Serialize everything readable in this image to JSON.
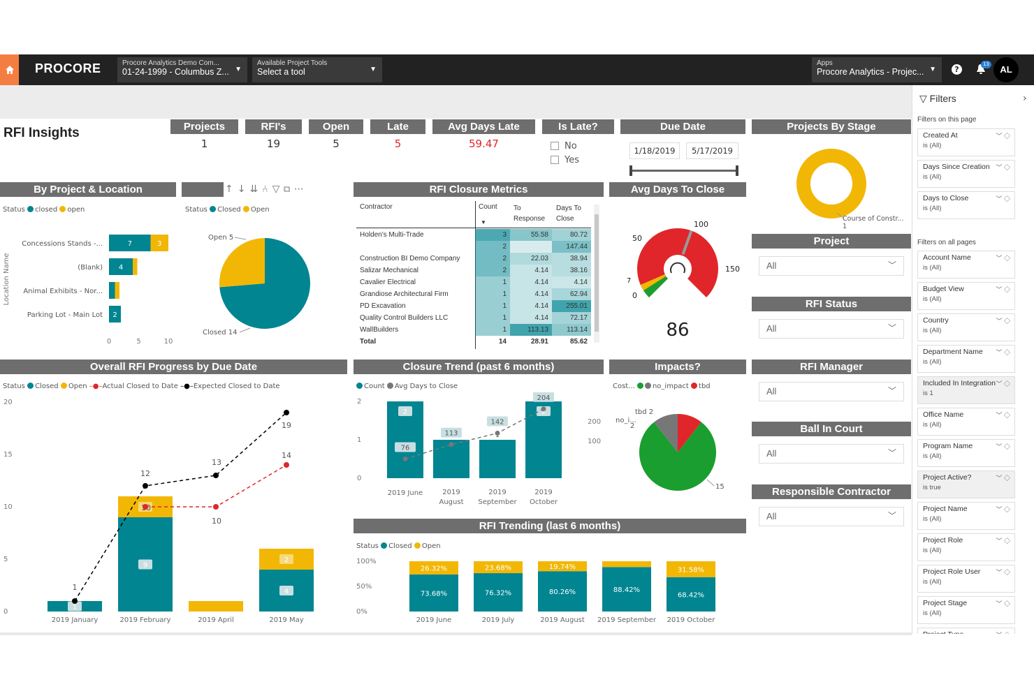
{
  "topbar": {
    "logo": "PROCORE",
    "company_line1": "Procore Analytics Demo Com...",
    "company_line2": "01-24-1999 - Columbus Z...",
    "tools_line1": "Available Project Tools",
    "tools_line2": "Select a tool",
    "apps_line1": "Apps",
    "apps_line2": "Procore Analytics - Projec...",
    "notif_count": "13",
    "avatar": "AL"
  },
  "page_title": "RFI Insights",
  "kpis": {
    "projects_label": "Projects",
    "projects_value": "1",
    "rfis_label": "RFI's",
    "rfis_value": "19",
    "open_label": "Open",
    "open_value": "5",
    "late_label": "Late",
    "late_value": "5",
    "avgdays_label": "Avg Days Late",
    "avgdays_value": "59.47"
  },
  "is_late": {
    "label": "Is Late?",
    "opt_no": "No",
    "opt_yes": "Yes"
  },
  "due_date": {
    "label": "Due Date",
    "start": "1/18/2019",
    "end": "5/17/2019"
  },
  "projects_by_stage": {
    "label": "Projects By Stage",
    "slice_label": "Course of Constr...",
    "slice_value": "1"
  },
  "slicers": {
    "project": "Project",
    "rfi_status": "RFI Status",
    "rfi_manager": "RFI Manager",
    "ball_in_court": "Ball In Court",
    "responsible_contractor": "Responsible Contractor",
    "all": "All"
  },
  "by_project": {
    "title": "By Project & Location",
    "legend_status": "Status",
    "legend_closed": "closed",
    "legend_open": "open",
    "axis_label": "Location Name",
    "categories": [
      "Concessions Stands -...",
      "(Blank)",
      "Animal Exhibits - Nor...",
      "Parking Lot - Main Lot"
    ],
    "closed": [
      7,
      4,
      1,
      2
    ],
    "open": [
      3,
      1,
      1,
      0
    ],
    "ticks": [
      "0",
      "5",
      "10"
    ]
  },
  "status_pie": {
    "legend_status": "Status",
    "legend_closed": "Closed",
    "legend_open": "Open",
    "open_label": "Open 5",
    "closed_label": "Closed 14",
    "open": 5,
    "closed": 14
  },
  "closure_metrics": {
    "title": "RFI Closure Metrics",
    "h_contractor": "Contractor",
    "h_count": "Count",
    "h_to1": "To",
    "h_to2": "Response",
    "h_days1": "Days To",
    "h_days2": "Close",
    "rows": [
      [
        "Holden's Multi-Trade",
        "3",
        "55.58",
        "80.72"
      ],
      [
        "",
        "2",
        "",
        "147.44"
      ],
      [
        "Construction BI Demo Company",
        "2",
        "22.03",
        "38.94"
      ],
      [
        "Salizar Mechanical",
        "2",
        "4.14",
        "38.16"
      ],
      [
        "Cavalier Electrical",
        "1",
        "4.14",
        "4.14"
      ],
      [
        "Grandiose Architectural Firm",
        "1",
        "4.14",
        "62.94"
      ],
      [
        "PD Excavation",
        "1",
        "4.14",
        "255.01"
      ],
      [
        "Quality Control Builders LLC",
        "1",
        "4.14",
        "72.17"
      ],
      [
        "WallBuilders",
        "1",
        "113.13",
        "113.14"
      ]
    ],
    "total": [
      "Total",
      "14",
      "28.91",
      "85.62"
    ]
  },
  "avg_days_close": {
    "title": "Avg Days To Close",
    "value": "86",
    "t0": "0",
    "t7": "7",
    "t50": "50",
    "t100": "100",
    "t150": "150"
  },
  "overall_progress": {
    "title": "Overall RFI Progress by Due Date",
    "legend_status": "Status",
    "legend_closed": "Closed",
    "legend_open": "Open",
    "legend_actual": "Actual Closed to Date",
    "legend_expected": "Expected Closed to Date",
    "yticks": [
      "0",
      "5",
      "10",
      "15",
      "20"
    ],
    "categories": [
      "2019 January",
      "2019 February",
      "2019 April",
      "2019 May"
    ],
    "closed": [
      1,
      9,
      0,
      4
    ],
    "open": [
      0,
      2,
      1,
      2
    ],
    "expected_labels": [
      "1",
      "10",
      "12",
      "13",
      "14",
      "19"
    ],
    "actual_labels": [
      "10"
    ]
  },
  "closure_trend": {
    "title": "Closure Trend (past 6 months)",
    "legend_count": "Count",
    "legend_avg": "Avg Days to Close",
    "categories": [
      "2019 June",
      "2019 August",
      "2019 September",
      "2019 October"
    ],
    "counts": [
      "2",
      "1",
      "1",
      "2"
    ],
    "avg": [
      "76",
      "113",
      "142",
      "204"
    ],
    "yleft": [
      "0",
      "1",
      "2"
    ],
    "yright": [
      "100",
      "200"
    ]
  },
  "impacts": {
    "title": "Impacts?",
    "legend_cost": "Cost...",
    "legend_no": "no_impact",
    "legend_tbd": "tbd",
    "tbd_label": "tbd 2",
    "no_i_label": "no_i...",
    "no_i_value": "2",
    "main_value": "15"
  },
  "trending": {
    "title": "RFI Trending (last 6 months)",
    "legend_status": "Status",
    "legend_closed": "Closed",
    "legend_open": "Open",
    "yticks": [
      "0%",
      "50%",
      "100%"
    ],
    "categories": [
      "2019 June",
      "2019 July",
      "2019 August",
      "2019 September",
      "2019 October"
    ],
    "closed": [
      "73.68%",
      "76.32%",
      "80.26%",
      "88.42%",
      "68.42%"
    ],
    "open": [
      "26.32%",
      "23.68%",
      "19.74%",
      "",
      "31.58%"
    ]
  },
  "filters": {
    "title": "Filters",
    "on_page": "Filters on this page",
    "all_pages": "Filters on all pages",
    "page_filters": [
      {
        "name": "Created At",
        "value": "is (All)"
      },
      {
        "name": "Days Since Creation",
        "value": "is (All)"
      },
      {
        "name": "Days to Close",
        "value": "is (All)"
      }
    ],
    "global_filters": [
      {
        "name": "Account Name",
        "value": "is (All)"
      },
      {
        "name": "Budget View",
        "value": "is (All)"
      },
      {
        "name": "Country",
        "value": "is (All)"
      },
      {
        "name": "Department Name",
        "value": "is (All)"
      },
      {
        "name": "Included In Integration",
        "value": "is 1"
      },
      {
        "name": "Office Name",
        "value": "is (All)"
      },
      {
        "name": "Program Name",
        "value": "is (All)"
      },
      {
        "name": "Project Active?",
        "value": "is true"
      },
      {
        "name": "Project Name",
        "value": "is (All)"
      },
      {
        "name": "Project Role",
        "value": "is (All)"
      },
      {
        "name": "Project Role User",
        "value": "is (All)"
      },
      {
        "name": "Project Stage",
        "value": "is (All)"
      },
      {
        "name": "Project Type",
        "value": ""
      }
    ]
  }
}
